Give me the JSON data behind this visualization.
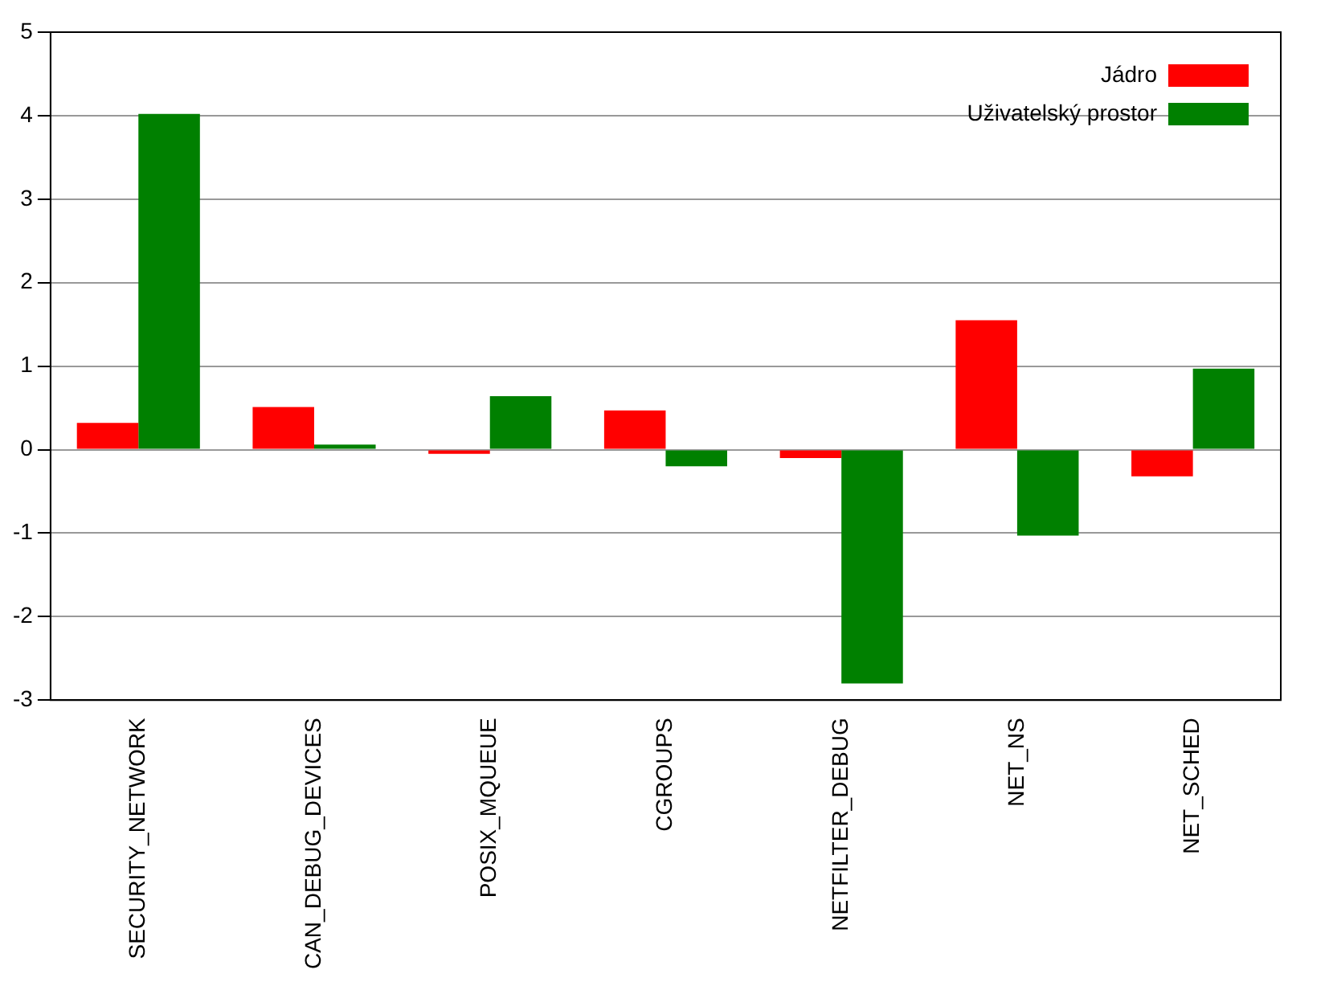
{
  "chart_data": {
    "type": "bar",
    "categories": [
      "SECURITY_NETWORK",
      "CAN_DEBUG_DEVICES",
      "POSIX_MQUEUE",
      "CGROUPS",
      "NETFILTER_DEBUG",
      "NET_NS",
      "NET_SCHED"
    ],
    "series": [
      {
        "name": "Jádro",
        "color": "#ff0000",
        "values": [
          0.32,
          0.51,
          -0.05,
          0.47,
          -0.1,
          1.55,
          -0.32
        ]
      },
      {
        "name": "Uživatelský prostor",
        "color": "#008000",
        "values": [
          4.02,
          0.06,
          0.64,
          -0.2,
          -2.8,
          -1.03,
          0.97
        ]
      }
    ],
    "ylim": [
      -3,
      5
    ],
    "yticks": [
      -3,
      -2,
      -1,
      0,
      1,
      2,
      3,
      4,
      5
    ],
    "grid": "y",
    "legend": "top right"
  }
}
